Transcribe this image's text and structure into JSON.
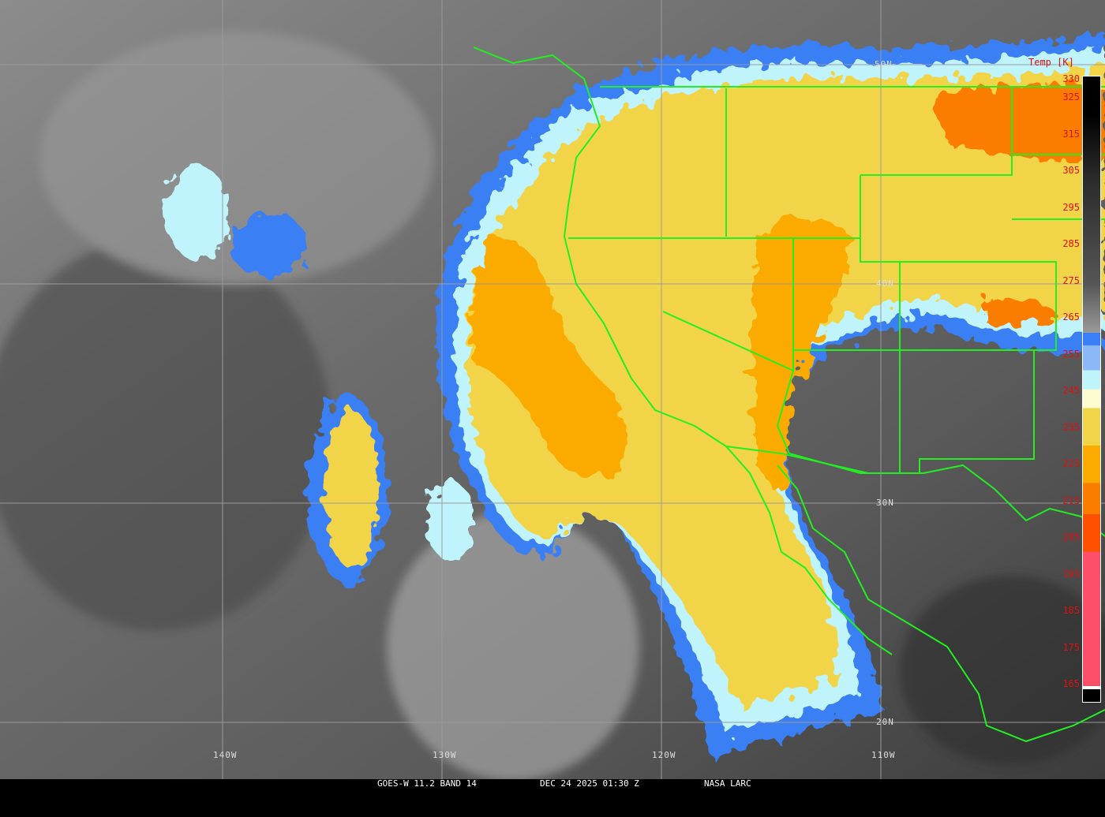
{
  "caption": {
    "satellite": "GOES-W 11.2 BAND 14",
    "datetime": "DEC 24 2025 01:30 Z",
    "credit": "NASA LARC"
  },
  "colorbar": {
    "title": "Temp [K]",
    "labels": [
      "330",
      "325",
      "315",
      "305",
      "295",
      "285",
      "275",
      "265",
      "255",
      "245",
      "235",
      "225",
      "215",
      "205",
      "195",
      "185",
      "175",
      "165"
    ],
    "colors": {
      "warm_top": "#000000",
      "mid_gray": "#9a9a9a",
      "blue": "#3a7ff5",
      "light_blue": "#8cb8f8",
      "pale_cyan": "#c0f4fc",
      "cream": "#fdfbd0",
      "yellow": "#f2d44a",
      "orange": "#fbab00",
      "dark_orange": "#fb7d00",
      "red_orange": "#fb5100",
      "pink_red": "#fd5068"
    }
  },
  "grid": {
    "latitudes": [
      "50N",
      "40N",
      "30N",
      "20N"
    ],
    "longitudes": [
      "140W",
      "130W",
      "120W",
      "110W"
    ]
  },
  "colors": {
    "boundary": "#22ee22",
    "grid": "#9a9a9a",
    "label": "#e01010"
  }
}
